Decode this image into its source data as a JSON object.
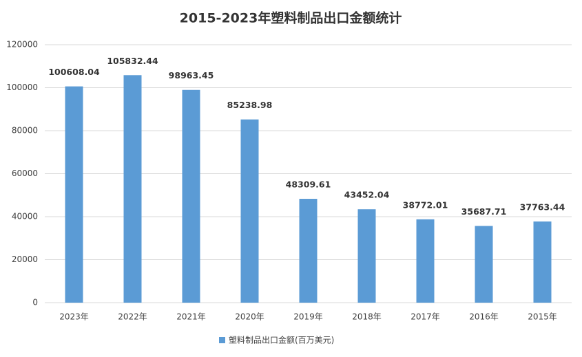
{
  "chart_data": {
    "type": "bar",
    "title": "2015-2023年塑料制品出口金额统计",
    "categories": [
      "2023年",
      "2022年",
      "2021年",
      "2020年",
      "2019年",
      "2018年",
      "2017年",
      "2016年",
      "2015年"
    ],
    "series": [
      {
        "name": "塑料制品出口金额(百万美元)",
        "color": "#5b9bd5",
        "values": [
          100608.04,
          105832.44,
          98963.45,
          85238.98,
          48309.61,
          43452.04,
          38772.01,
          35687.71,
          37763.44
        ]
      }
    ],
    "ylim": [
      0,
      120000
    ],
    "yticks": [
      0,
      20000,
      40000,
      60000,
      80000,
      100000,
      120000
    ],
    "grid": true,
    "legend": "bottom"
  }
}
